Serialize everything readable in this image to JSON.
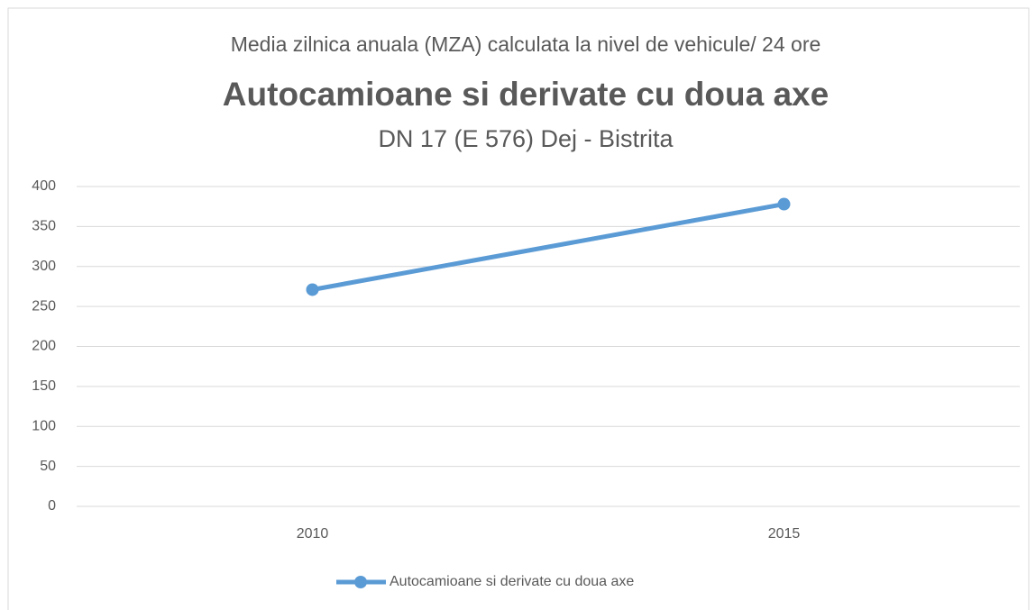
{
  "chart_data": {
    "type": "line",
    "pretitle": "Media zilnica anuala (MZA) calculata la nivel de vehicule/ 24 ore",
    "title": "Autocamioane si derivate cu doua axe",
    "subtitle": "DN 17 (E 576) Dej - Bistrita",
    "categories": [
      "2010",
      "2015"
    ],
    "series": [
      {
        "name": "Autocamioane si derivate cu doua axe",
        "color": "#5b9bd5",
        "values": [
          271,
          378
        ]
      }
    ],
    "ylim": [
      0,
      400
    ],
    "yticks": [
      0,
      50,
      100,
      150,
      200,
      250,
      300,
      350,
      400
    ],
    "grid": true,
    "legend": "bottom"
  }
}
